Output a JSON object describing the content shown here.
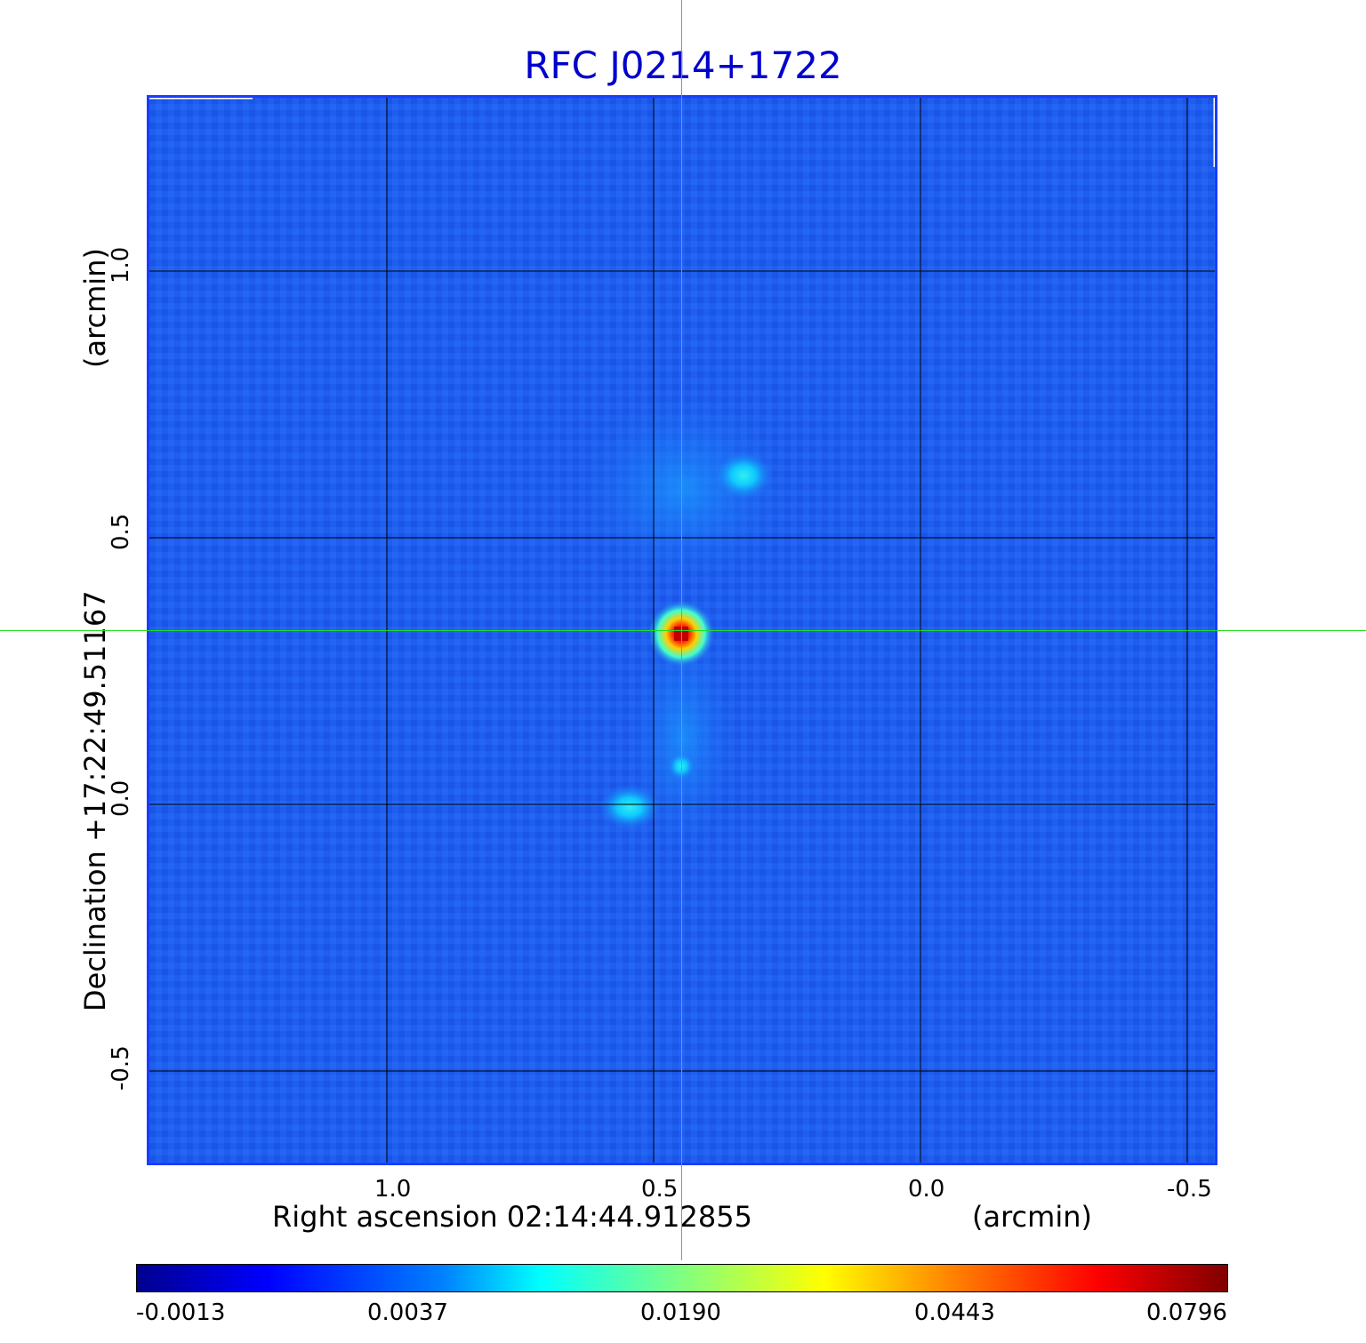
{
  "title": "RFC J0214+1722",
  "colors": {
    "title": "#0000cc",
    "frame": "#1a3cff",
    "grid": "#000000",
    "crosshair": "#22dd22",
    "background_map": "#1e5ef0"
  },
  "axes": {
    "x_label": "Right ascension  02:14:44.912855",
    "x_unit": "(arcmin)",
    "y_label": "Declination  +17:22:49.51167",
    "y_unit": "(arcmin)",
    "x_ticks": [
      "1.0",
      "0.5",
      "0.0",
      "-0.5"
    ],
    "y_ticks": [
      "1.0",
      "0.5",
      "0.0",
      "-0.5"
    ]
  },
  "colorbar": {
    "colormap": "jet",
    "ticks": [
      "-0.0013",
      "0.0037",
      "0.0190",
      "0.0443",
      "0.0796"
    ]
  },
  "image": {
    "features": [
      {
        "name": "core-peak-icon",
        "description_value": "bright core"
      },
      {
        "name": "north-lobe-icon",
        "description_value": "north knot"
      },
      {
        "name": "south-lobe-icon",
        "description_value": "south knot"
      }
    ]
  }
}
